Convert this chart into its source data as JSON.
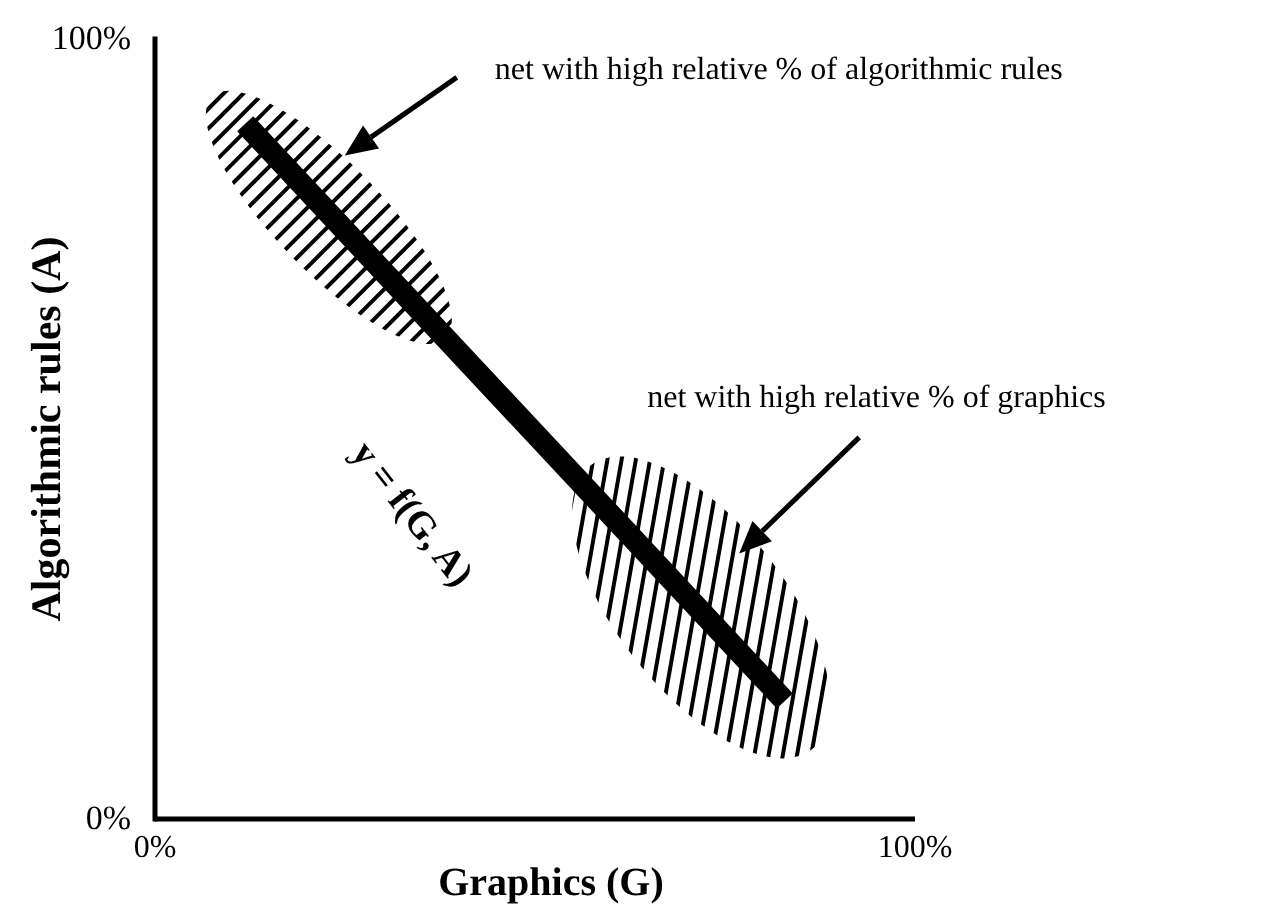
{
  "chart_data": {
    "type": "line",
    "xlabel": "Graphics (G)",
    "ylabel": "Algorithmic rules (A)",
    "x": [
      12,
      83
    ],
    "series": [
      {
        "color": "#000000",
        "values": [
          89,
          15
        ]
      }
    ],
    "xlim": [
      0,
      100
    ],
    "ylim": [
      0,
      100
    ],
    "xticks": [
      {
        "value": 0,
        "label": "0%"
      },
      {
        "value": 100,
        "label": "100%"
      }
    ],
    "yticks": [
      {
        "value": 0,
        "label": "0%"
      },
      {
        "value": 100,
        "label": "100%"
      }
    ],
    "marker": "none",
    "line_style": "solid",
    "annotations": [
      "net with high relative % of algorithmic rules",
      "net with high relative % of graphics",
      "y = f(G, A)"
    ]
  }
}
